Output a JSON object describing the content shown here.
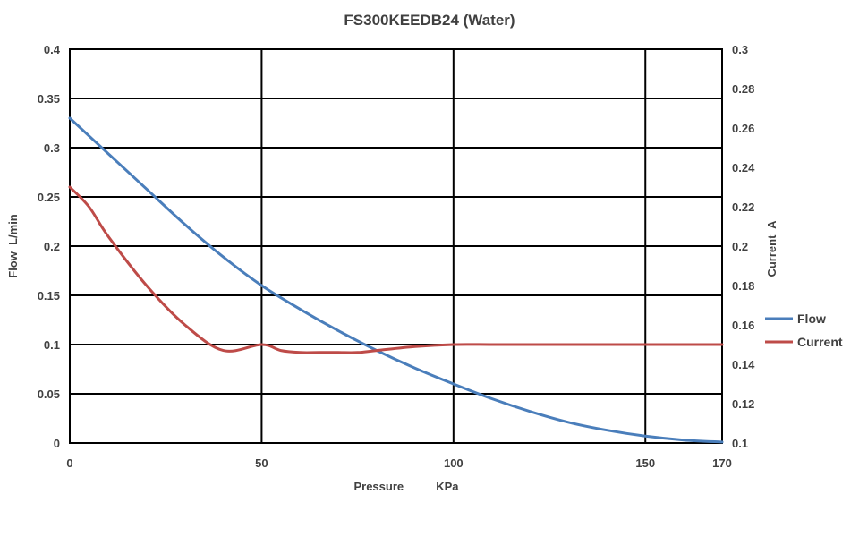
{
  "chart_data": {
    "type": "line",
    "title": "FS300KEEDB24 (Water)",
    "xlabel": "Pressure          KPa",
    "ylabel": "Flow  L/min",
    "y2label": "Current  A",
    "xlim": [
      0,
      170
    ],
    "ylim": [
      0,
      0.4
    ],
    "y2lim": [
      0.1,
      0.3
    ],
    "xticks": [
      "0",
      "50",
      "100",
      "150",
      "170"
    ],
    "xtick_values": [
      0,
      50,
      100,
      150,
      170
    ],
    "yticks": [
      "0",
      "0.05",
      "0.1",
      "0.15",
      "0.2",
      "0.25",
      "0.3",
      "0.35",
      "0.4"
    ],
    "y2ticks": [
      "0.1",
      "0.12",
      "0.14",
      "0.16",
      "0.18",
      "0.2",
      "0.22",
      "0.24",
      "0.26",
      "0.28",
      "0.3"
    ],
    "grid": true,
    "legend_position": "right",
    "series": [
      {
        "name": "Flow",
        "axis": "left",
        "color": "#4a7ebb",
        "x": [
          0,
          10,
          20,
          30,
          40,
          50,
          60,
          70,
          80,
          90,
          100,
          110,
          120,
          130,
          140,
          150,
          160,
          170
        ],
        "y": [
          0.33,
          0.294,
          0.258,
          0.222,
          0.189,
          0.16,
          0.136,
          0.114,
          0.094,
          0.076,
          0.06,
          0.045,
          0.032,
          0.021,
          0.013,
          0.007,
          0.003,
          0.001
        ]
      },
      {
        "name": "Current",
        "axis": "right",
        "color": "#be4b48",
        "x": [
          0,
          5,
          10,
          20,
          30,
          40,
          50,
          55,
          60,
          65,
          70,
          75,
          80,
          90,
          100,
          110,
          120,
          130,
          140,
          150,
          160,
          170
        ],
        "y": [
          0.23,
          0.22,
          0.205,
          0.18,
          0.16,
          0.147,
          0.15,
          0.147,
          0.146,
          0.146,
          0.146,
          0.146,
          0.147,
          0.149,
          0.15,
          0.15,
          0.15,
          0.15,
          0.15,
          0.15,
          0.15,
          0.15
        ]
      }
    ]
  }
}
